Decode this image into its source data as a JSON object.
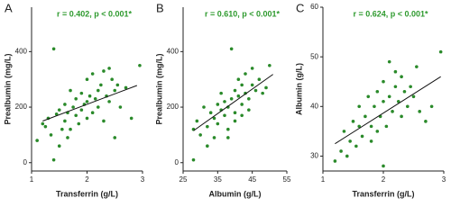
{
  "chart_data": [
    {
      "type": "scatter",
      "panel_label": "A",
      "title": "r = 0.402, p < 0.001*",
      "x_label": "Transferrin (g/L)",
      "y_label": "Prealbumin (mg/L)",
      "color": "#2a8a2a",
      "xlim": [
        1,
        3
      ],
      "xticks": [
        1,
        2,
        3
      ],
      "ylim": [
        -30,
        560
      ],
      "yticks": [
        0,
        200,
        400
      ],
      "x": [
        1.1,
        1.2,
        1.25,
        1.3,
        1.35,
        1.4,
        1.4,
        1.45,
        1.5,
        1.5,
        1.55,
        1.6,
        1.6,
        1.65,
        1.7,
        1.7,
        1.75,
        1.8,
        1.8,
        1.85,
        1.9,
        1.9,
        1.95,
        2.0,
        2.0,
        2.0,
        2.05,
        2.1,
        2.1,
        2.15,
        2.2,
        2.2,
        2.25,
        2.3,
        2.3,
        2.35,
        2.4,
        2.45,
        2.5,
        2.5,
        2.55,
        2.6,
        2.7,
        2.8,
        2.95,
        1.65,
        2.4
      ],
      "y": [
        80,
        140,
        130,
        160,
        100,
        410,
        10,
        175,
        190,
        60,
        120,
        210,
        150,
        180,
        260,
        120,
        200,
        170,
        230,
        140,
        250,
        190,
        210,
        300,
        220,
        160,
        240,
        180,
        320,
        230,
        200,
        260,
        280,
        150,
        330,
        240,
        220,
        300,
        90,
        260,
        280,
        200,
        270,
        160,
        350,
        90,
        340
      ],
      "trend_line": {
        "x": [
          1.2,
          2.9
        ],
        "y": [
          150,
          278
        ]
      }
    },
    {
      "type": "scatter",
      "panel_label": "B",
      "title": "r = 0.610, p < 0.001*",
      "x_label": "Albumin (g/L)",
      "y_label": "Prealbumin (mg/L)",
      "color": "#2a8a2a",
      "xlim": [
        25,
        55
      ],
      "xticks": [
        25,
        35,
        45,
        55
      ],
      "ylim": [
        -30,
        560
      ],
      "yticks": [
        0,
        200,
        400
      ],
      "x": [
        28,
        28,
        29,
        30,
        31,
        32,
        32,
        33,
        34,
        34,
        35,
        35,
        36,
        36,
        37,
        37,
        38,
        38,
        39,
        39,
        40,
        40,
        41,
        41,
        42,
        42,
        43,
        43,
        44,
        44,
        45,
        45,
        46,
        47,
        48,
        49,
        50,
        38,
        40,
        42
      ],
      "y": [
        120,
        10,
        150,
        100,
        200,
        130,
        60,
        180,
        160,
        90,
        210,
        140,
        190,
        250,
        170,
        220,
        200,
        120,
        230,
        410,
        180,
        260,
        240,
        300,
        210,
        280,
        250,
        320,
        230,
        190,
        280,
        340,
        260,
        300,
        250,
        270,
        350,
        90,
        150,
        170
      ],
      "trend_line": {
        "x": [
          28,
          51
        ],
        "y": [
          115,
          318
        ]
      }
    },
    {
      "type": "scatter",
      "panel_label": "C",
      "title": "r = 0.624, p < 0.001*",
      "x_label": "Transferrin (g/L)",
      "y_label": "Albumin (g/L)",
      "color": "#2a8a2a",
      "xlim": [
        1,
        3
      ],
      "xticks": [
        1,
        2,
        3
      ],
      "ylim": [
        27,
        60
      ],
      "yticks": [
        30,
        40,
        50,
        60
      ],
      "x": [
        1.2,
        1.3,
        1.35,
        1.4,
        1.45,
        1.5,
        1.55,
        1.6,
        1.6,
        1.65,
        1.7,
        1.75,
        1.8,
        1.8,
        1.85,
        1.9,
        1.95,
        2.0,
        2.0,
        2.05,
        2.1,
        2.1,
        2.15,
        2.2,
        2.25,
        2.3,
        2.3,
        2.35,
        2.4,
        2.45,
        2.5,
        2.55,
        2.6,
        2.7,
        2.8,
        2.95,
        2.0,
        1.9,
        2.2
      ],
      "y": [
        29,
        31,
        35,
        30,
        33,
        37,
        32,
        36,
        40,
        34,
        38,
        42,
        36,
        33,
        40,
        43,
        38,
        41,
        45,
        36,
        49,
        42,
        39,
        44,
        41,
        46,
        38,
        43,
        40,
        44,
        42,
        48,
        39,
        37,
        40,
        51,
        28,
        35,
        47
      ],
      "trend_line": {
        "x": [
          1.2,
          2.95
        ],
        "y": [
          32.5,
          46
        ]
      }
    }
  ]
}
